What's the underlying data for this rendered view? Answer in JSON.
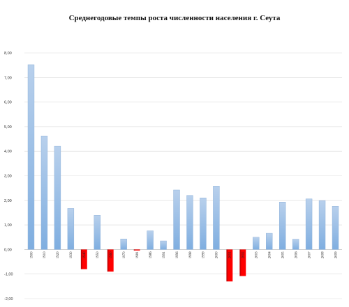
{
  "chart_data": {
    "type": "bar",
    "title": "Среднегодовые темпы роста численности населения г. Сеута",
    "xlabel": "",
    "ylabel": "",
    "ylim": [
      -2,
      8
    ],
    "yticks": [
      "-2,00",
      "-1,00",
      "0,00",
      "1,00",
      "2,00",
      "3,00",
      "4,00",
      "5,00",
      "6,00",
      "7,00",
      "8,00"
    ],
    "categories": [
      "1900",
      "1910",
      "1920",
      "1930",
      "1940",
      "1950",
      "1960",
      "1970",
      "1981",
      "1986",
      "1991",
      "1996",
      "1998",
      "1999",
      "2000",
      "2001",
      "2002",
      "2003",
      "2004",
      "2005",
      "2006",
      "2007",
      "2008",
      "2009"
    ],
    "values": [
      7.52,
      4.62,
      4.2,
      1.67,
      -0.8,
      1.39,
      -0.9,
      0.43,
      -0.04,
      0.76,
      0.35,
      2.42,
      2.2,
      2.1,
      2.58,
      -1.3,
      -1.08,
      0.5,
      0.66,
      1.93,
      0.42,
      2.06,
      1.99,
      1.76
    ],
    "grid": true,
    "legend": "none",
    "colors": {
      "positive_top": "#b8d0ec",
      "positive_bottom": "#7faee0",
      "positive_stroke": "#8fb2da",
      "negative": "#ff0000",
      "negative_dark": "#b00000"
    }
  }
}
